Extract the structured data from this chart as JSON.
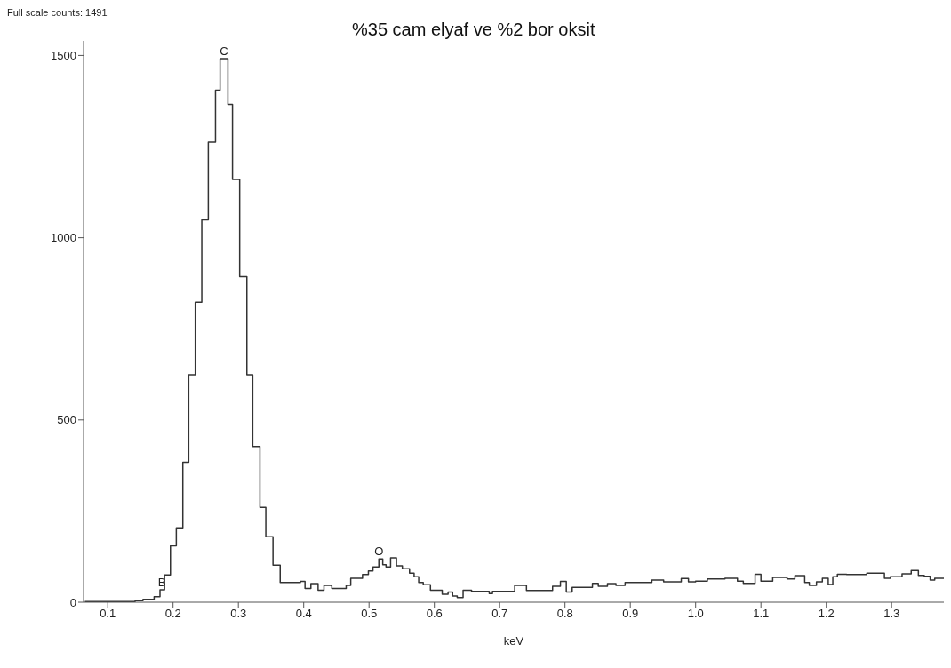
{
  "chart_data": {
    "type": "step",
    "title": "%35 cam elyaf ve %2 bor oksit",
    "xlabel": "keV",
    "annotations": [
      "Full scale counts: 1491",
      {
        "text": "C",
        "x": 0.278,
        "y": 1491
      },
      {
        "text": "B",
        "x": 0.183,
        "y": 34
      },
      {
        "text": "O",
        "x": 0.515,
        "y": 119
      }
    ],
    "x": [
      0.065,
      0.142,
      0.154,
      0.171,
      0.18,
      0.187,
      0.196,
      0.205,
      0.215,
      0.224,
      0.234,
      0.244,
      0.254,
      0.265,
      0.272,
      0.284,
      0.291,
      0.302,
      0.313,
      0.322,
      0.333,
      0.342,
      0.353,
      0.364,
      0.395,
      0.402,
      0.411,
      0.422,
      0.431,
      0.443,
      0.465,
      0.472,
      0.49,
      0.499,
      0.506,
      0.515,
      0.521,
      0.526,
      0.533,
      0.542,
      0.551,
      0.562,
      0.569,
      0.576,
      0.583,
      0.594,
      0.612,
      0.621,
      0.628,
      0.635,
      0.644,
      0.657,
      0.684,
      0.689,
      0.723,
      0.741,
      0.781,
      0.793,
      0.802,
      0.811,
      0.842,
      0.851,
      0.865,
      0.878,
      0.892,
      0.933,
      0.951,
      0.978,
      0.989,
      1.0,
      1.018,
      1.045,
      1.064,
      1.073,
      1.091,
      1.1,
      1.118,
      1.14,
      1.152,
      1.167,
      1.174,
      1.185,
      1.194,
      1.203,
      1.21,
      1.217,
      1.231,
      1.262,
      1.289,
      1.298,
      1.316,
      1.33,
      1.341,
      1.35,
      1.359,
      1.366,
      1.38
    ],
    "series": [
      {
        "color": "#333333",
        "values": [
          2,
          4,
          8,
          15,
          34,
          75,
          155,
          204,
          384,
          624,
          823,
          1049,
          1262,
          1405,
          1491,
          1366,
          1160,
          893,
          624,
          427,
          260,
          180,
          102,
          54,
          57,
          38,
          51,
          33,
          46,
          38,
          46,
          66,
          76,
          86,
          97,
          119,
          103,
          97,
          122,
          100,
          92,
          80,
          70,
          54,
          48,
          33,
          22,
          28,
          17,
          13,
          33,
          30,
          24,
          30,
          46,
          32,
          44,
          57,
          28,
          41,
          52,
          44,
          51,
          46,
          54,
          61,
          56,
          65,
          56,
          58,
          64,
          66,
          58,
          52,
          77,
          58,
          68,
          64,
          73,
          54,
          46,
          56,
          66,
          49,
          70,
          77,
          76,
          80,
          66,
          70,
          78,
          87,
          74,
          71,
          61,
          66,
          66
        ]
      }
    ],
    "xlim": [
      0.063,
      1.38
    ],
    "xticks": [
      0.1,
      0.2,
      0.3,
      0.4,
      0.5,
      0.6,
      0.7,
      0.8,
      0.9,
      {
        "value": 1.0,
        "label": "1.0"
      },
      1.1,
      1.2,
      1.3
    ],
    "ylim": [
      0,
      1540
    ],
    "yticks": [
      0,
      500,
      1000,
      1500
    ],
    "grid": false,
    "legend": false,
    "marker": "none",
    "line_style": "solid"
  }
}
